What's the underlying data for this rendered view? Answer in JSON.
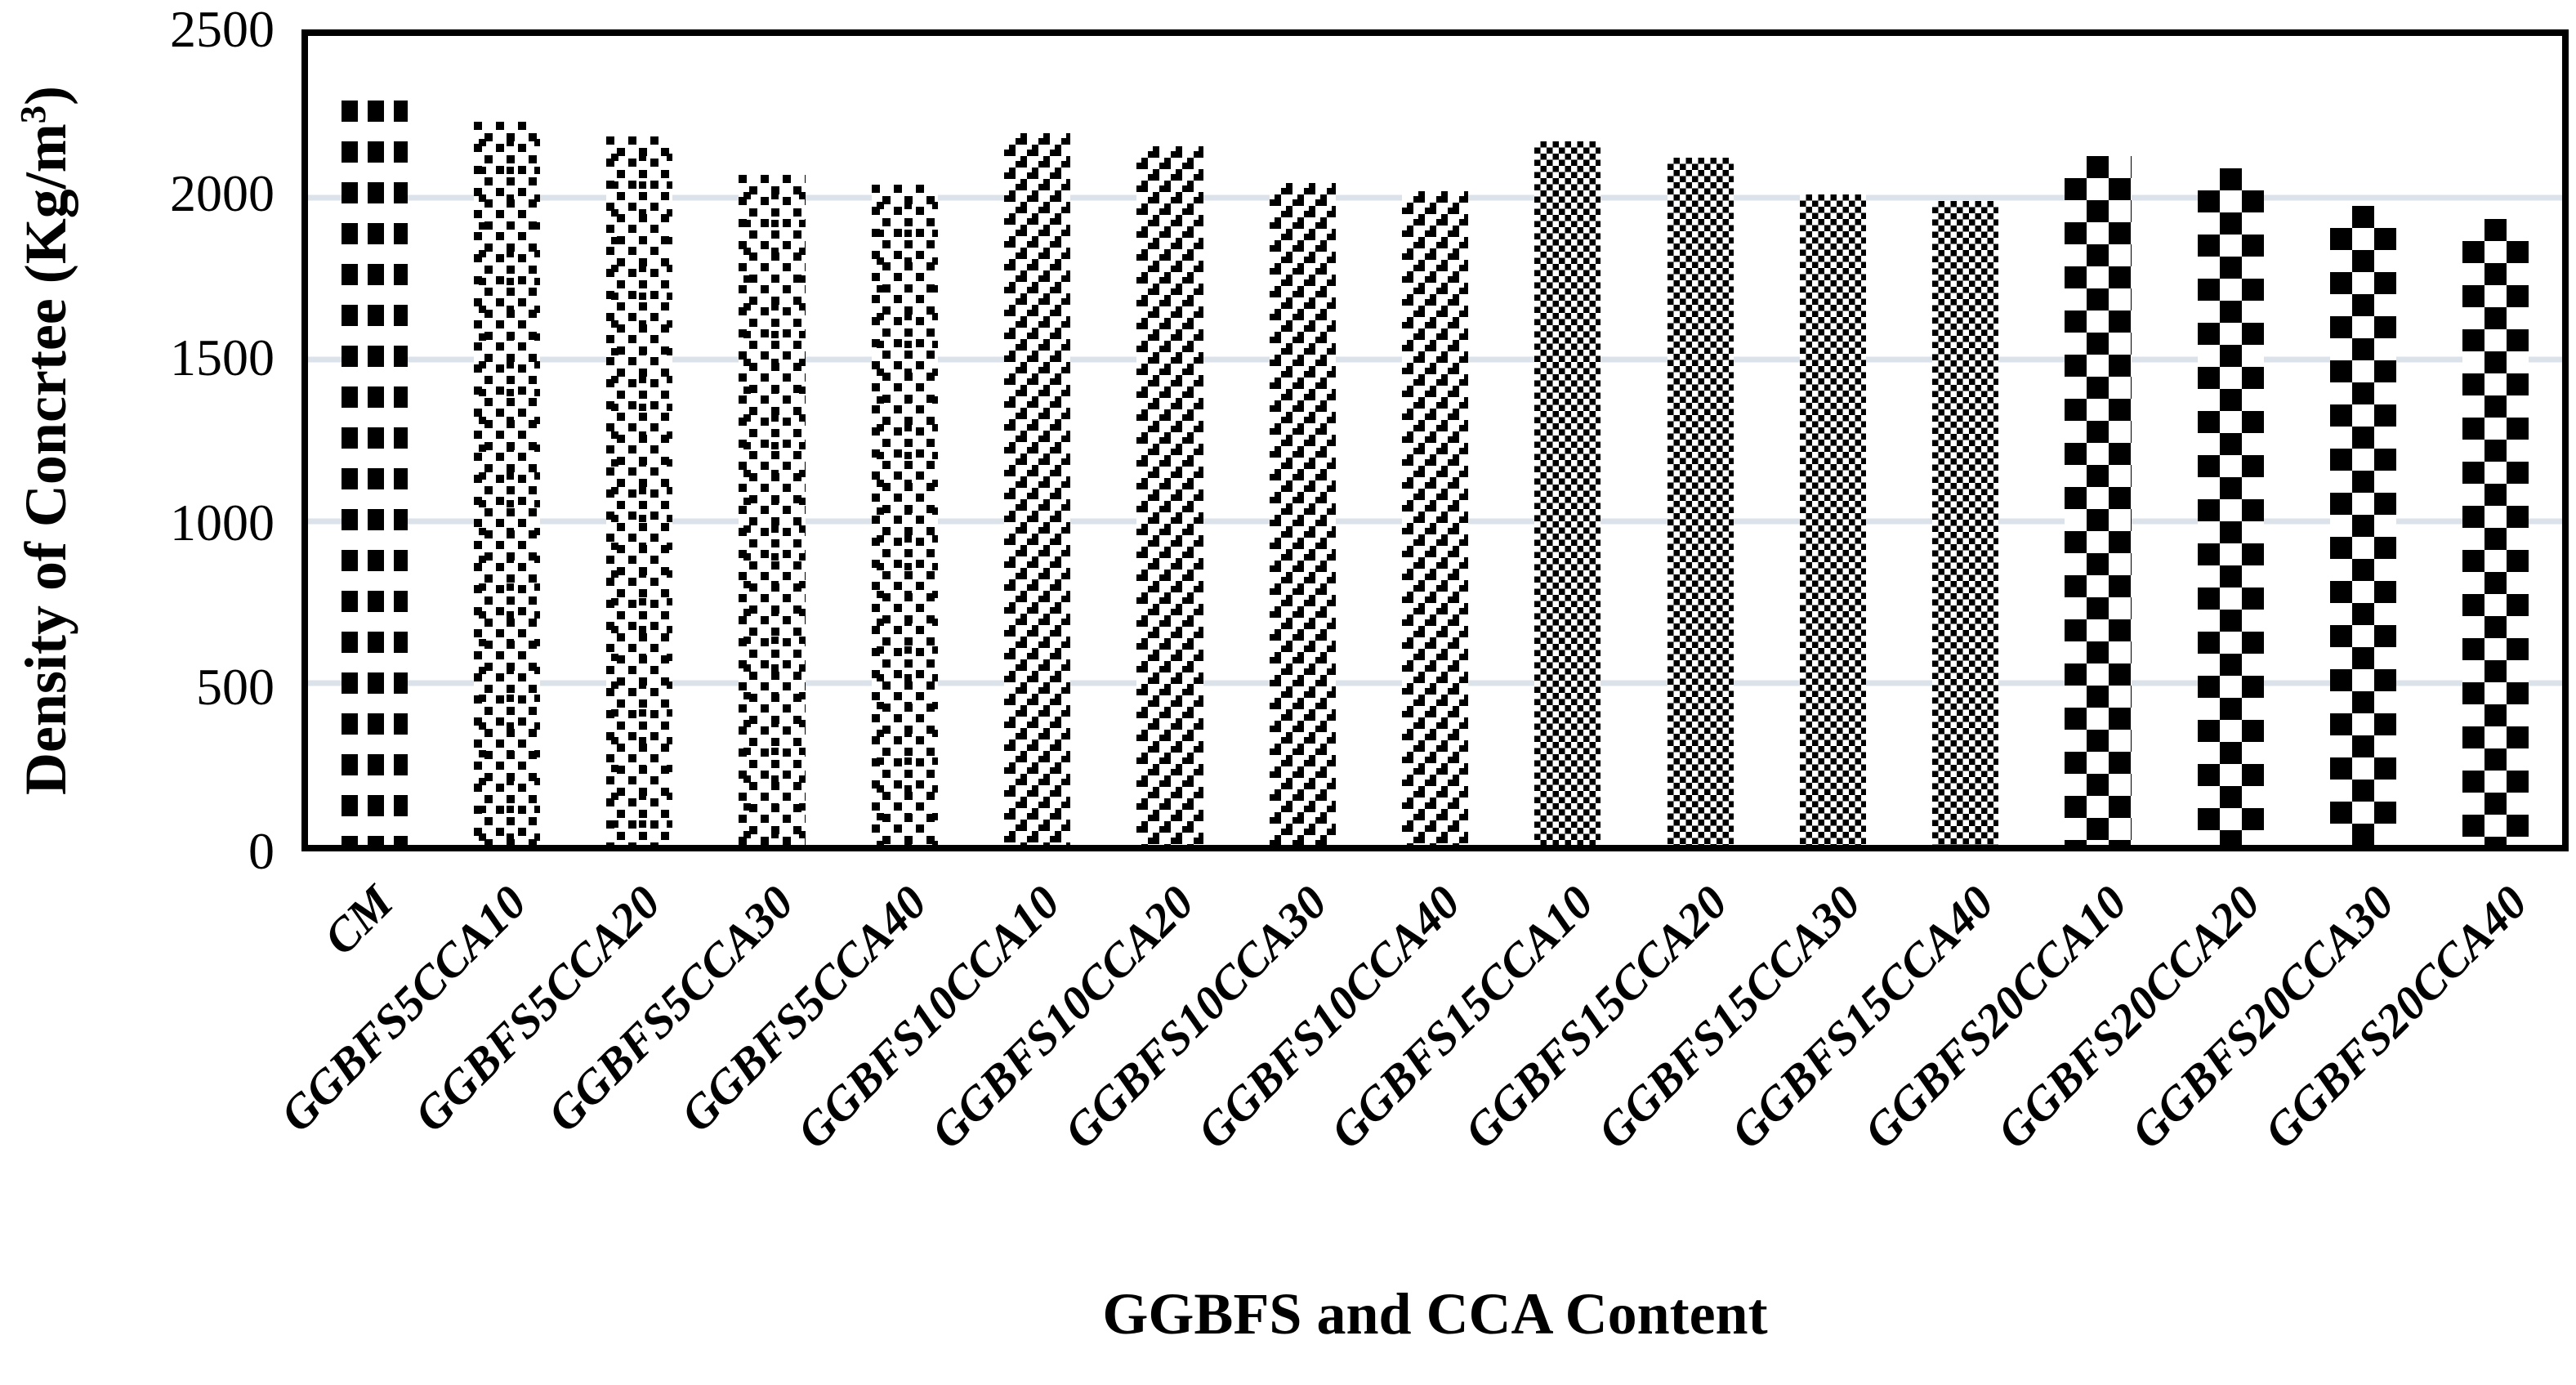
{
  "chart_data": {
    "type": "bar",
    "title": "",
    "xlabel": "GGBFS and CCA Content",
    "ylabel": "Density of Concrtee (Kg/m³)",
    "ylabel_parts": [
      "Density of Concrtee (Kg/m",
      "3",
      ")"
    ],
    "categories": [
      "CM",
      "GGBFS5CCA10",
      "GGBFS5CCA20",
      "GGBFS5CCA30",
      "GGBFS5CCA40",
      "GGBFS10CCA10",
      "GGBFS10CCA20",
      "GGBFS10CCA30",
      "GGBFS10CCA40",
      "GGBFS15CCA10",
      "GGBFS15CCA20",
      "GGBFS15CCA30",
      "GGBFS15CCA40",
      "GGBFS20CCA10",
      "GGBFS20CCA20",
      "GGBFS20CCA30",
      "GGBFS20CCA40"
    ],
    "values": [
      2360,
      2235,
      2190,
      2070,
      2040,
      2200,
      2160,
      2045,
      2020,
      2175,
      2125,
      2010,
      1990,
      2130,
      2090,
      1975,
      1935
    ],
    "patterns": [
      "plaid",
      "dots",
      "dots",
      "dots",
      "dots",
      "diamond",
      "diamond",
      "diamond",
      "diamond",
      "small",
      "small",
      "small",
      "small",
      "large",
      "large",
      "large",
      "large"
    ],
    "pattern_names": {
      "plaid": "woven-plaid-fill",
      "dots": "scattered-dots-fill",
      "diamond": "outlined-diamond-checker-fill",
      "small": "small-checkerboard-fill",
      "large": "large-checkerboard-fill"
    },
    "ylim": [
      0,
      2500
    ],
    "yticks": [
      0,
      500,
      1000,
      1500,
      2000,
      2500
    ],
    "gridline_values": [
      500,
      1000,
      1500,
      2000
    ],
    "grid": true,
    "legend": false,
    "colors": {
      "foreground": "#000000",
      "background": "#ffffff",
      "gridline": "#dbe2ea",
      "frame": "#000000"
    }
  }
}
